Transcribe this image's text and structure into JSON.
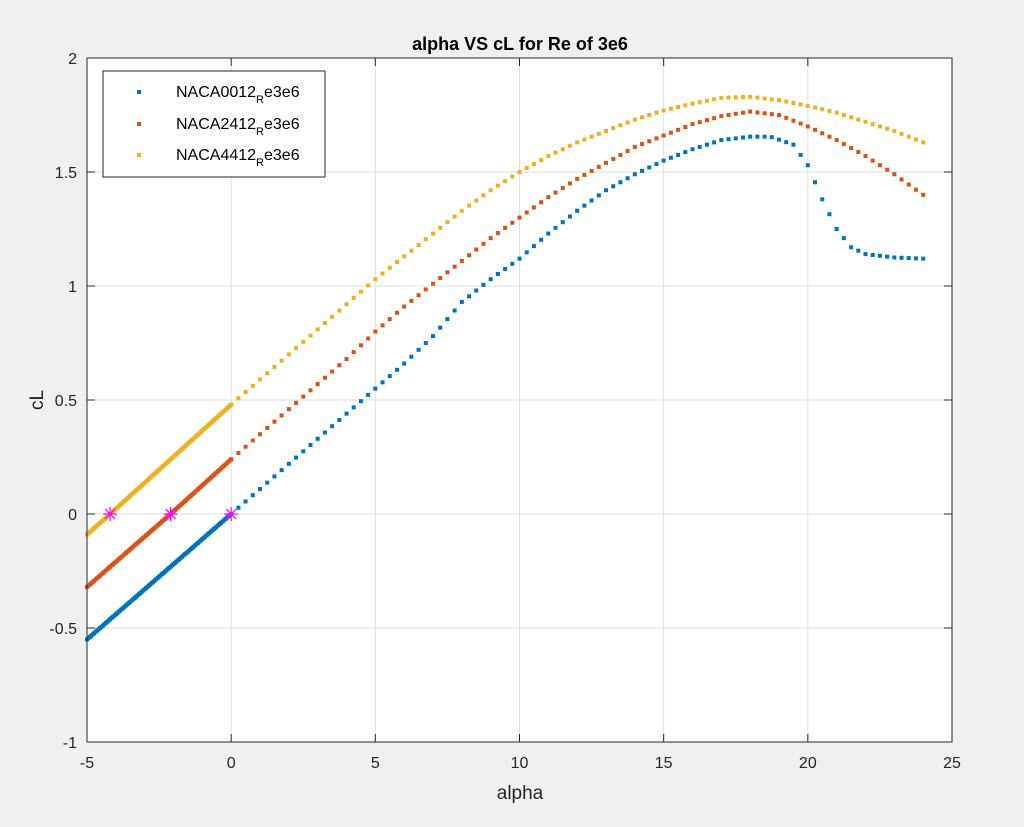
{
  "chart_data": {
    "type": "scatter",
    "title": "alpha VS cL for Re of 3e6",
    "xlabel": "alpha",
    "ylabel": "cL",
    "xlim": [
      -5,
      25
    ],
    "ylim": [
      -1,
      2
    ],
    "xticks": [
      -5,
      0,
      5,
      10,
      15,
      20,
      25
    ],
    "xtick_labels": [
      "-5",
      "0",
      "5",
      "10",
      "15",
      "20",
      "25"
    ],
    "yticks": [
      -1,
      -0.5,
      0,
      0.5,
      1,
      1.5,
      2
    ],
    "ytick_labels": [
      "-1",
      "-0.5",
      "0",
      "0.5",
      "1",
      "1.5",
      "2"
    ],
    "grid": true,
    "legend_position": "top-left",
    "series": [
      {
        "name_main": "NACA0012",
        "name_sub": "R",
        "name_tail": "e3e6",
        "color": "#0072BD",
        "curve": [
          [
            -5,
            -0.55
          ],
          [
            0,
            0.0
          ],
          [
            1,
            0.11
          ],
          [
            2,
            0.22
          ],
          [
            3,
            0.33
          ],
          [
            4,
            0.44
          ],
          [
            5,
            0.55
          ],
          [
            6,
            0.66
          ],
          [
            7,
            0.78
          ],
          [
            8,
            0.93
          ],
          [
            9,
            1.03
          ],
          [
            10,
            1.12
          ],
          [
            11,
            1.23
          ],
          [
            12,
            1.33
          ],
          [
            13,
            1.42
          ],
          [
            14,
            1.49
          ],
          [
            15,
            1.55
          ],
          [
            16,
            1.6
          ],
          [
            17,
            1.64
          ],
          [
            18,
            1.655
          ],
          [
            18.7,
            1.655
          ],
          [
            19.5,
            1.62
          ],
          [
            20,
            1.53
          ],
          [
            20.5,
            1.38
          ],
          [
            21,
            1.25
          ],
          [
            21.5,
            1.17
          ],
          [
            22,
            1.14
          ],
          [
            23,
            1.125
          ],
          [
            24,
            1.12
          ]
        ],
        "dense_until": 0
      },
      {
        "name_main": "NACA2412",
        "name_sub": "R",
        "name_tail": "e3e6",
        "color": "#D95319",
        "curve": [
          [
            -5,
            -0.32
          ],
          [
            -2.1,
            0.0
          ],
          [
            0,
            0.24
          ],
          [
            1,
            0.35
          ],
          [
            2,
            0.46
          ],
          [
            3,
            0.57
          ],
          [
            4,
            0.68
          ],
          [
            5,
            0.8
          ],
          [
            6,
            0.91
          ],
          [
            7,
            1.01
          ],
          [
            8,
            1.11
          ],
          [
            9,
            1.21
          ],
          [
            10,
            1.3
          ],
          [
            11,
            1.39
          ],
          [
            12,
            1.47
          ],
          [
            13,
            1.54
          ],
          [
            14,
            1.61
          ],
          [
            15,
            1.66
          ],
          [
            16,
            1.71
          ],
          [
            17,
            1.745
          ],
          [
            18,
            1.765
          ],
          [
            19,
            1.75
          ],
          [
            20,
            1.7
          ],
          [
            21,
            1.64
          ],
          [
            22,
            1.57
          ],
          [
            23,
            1.49
          ],
          [
            24,
            1.4
          ]
        ],
        "dense_until": 0
      },
      {
        "name_main": "NACA4412",
        "name_sub": "R",
        "name_tail": "e3e6",
        "color": "#EDB120",
        "curve": [
          [
            -5,
            -0.09
          ],
          [
            -4.2,
            0.0
          ],
          [
            0,
            0.48
          ],
          [
            1,
            0.59
          ],
          [
            2,
            0.7
          ],
          [
            3,
            0.81
          ],
          [
            4,
            0.92
          ],
          [
            5,
            1.03
          ],
          [
            6,
            1.13
          ],
          [
            7,
            1.23
          ],
          [
            8,
            1.33
          ],
          [
            9,
            1.42
          ],
          [
            10,
            1.5
          ],
          [
            11,
            1.57
          ],
          [
            12,
            1.63
          ],
          [
            13,
            1.68
          ],
          [
            14,
            1.73
          ],
          [
            15,
            1.77
          ],
          [
            16,
            1.8
          ],
          [
            17,
            1.825
          ],
          [
            18,
            1.83
          ],
          [
            19,
            1.815
          ],
          [
            20,
            1.79
          ],
          [
            21,
            1.76
          ],
          [
            22,
            1.72
          ],
          [
            23,
            1.68
          ],
          [
            24,
            1.63
          ]
        ],
        "dense_until": 0
      }
    ],
    "zero_lift_markers": {
      "color": "#FF00FF",
      "points": [
        [
          -4.2,
          0
        ],
        [
          -2.1,
          0
        ],
        [
          0,
          0
        ]
      ]
    }
  }
}
